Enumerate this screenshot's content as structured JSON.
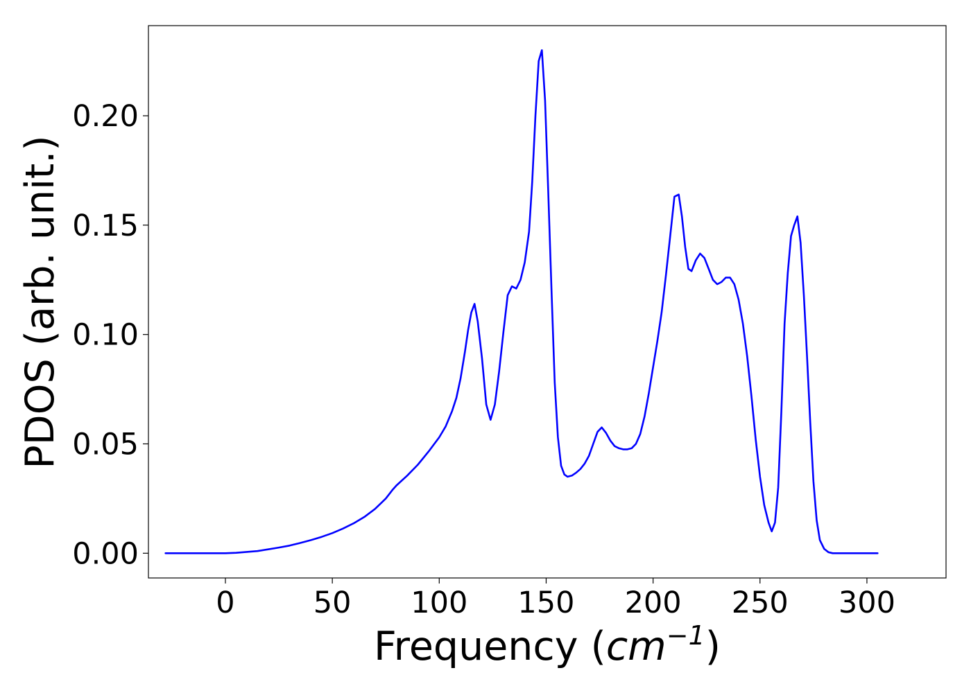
{
  "chart_data": {
    "type": "line",
    "title": "",
    "xlabel": "Frequency (",
    "xlabel_math": "cm",
    "xlabel_sup": "−1",
    "xlabel_end": ")",
    "ylabel": "PDOS (arb. unit.)",
    "xlim": [
      -36,
      337
    ],
    "ylim": [
      -0.0113,
      0.2412
    ],
    "xticks": [
      0,
      50,
      100,
      150,
      200,
      250,
      300
    ],
    "xtick_labels": [
      "0",
      "50",
      "100",
      "150",
      "200",
      "250",
      "300"
    ],
    "yticks": [
      0.0,
      0.05,
      0.1,
      0.15,
      0.2
    ],
    "ytick_labels": [
      "0.00",
      "0.05",
      "0.10",
      "0.15",
      "0.20"
    ],
    "grid": false,
    "series": [
      {
        "color": "#0000ff",
        "x": [
          -28,
          -20,
          -10,
          0,
          5,
          10,
          15,
          20,
          25,
          30,
          35,
          40,
          45,
          50,
          55,
          60,
          65,
          70,
          75,
          78,
          80,
          85,
          90,
          95,
          100,
          103,
          106,
          108,
          110,
          112,
          113.5,
          115,
          116.5,
          118,
          120,
          122,
          124,
          126,
          128,
          130,
          132,
          134,
          136,
          138,
          140,
          142,
          143.5,
          145,
          146.5,
          148,
          149.5,
          151,
          152.5,
          154,
          155.5,
          157,
          158.5,
          160,
          162,
          164,
          166,
          168,
          170,
          172,
          174,
          176,
          178,
          180,
          182,
          184,
          186,
          188,
          190,
          192,
          194,
          196,
          198,
          200,
          202,
          204,
          206,
          208,
          210,
          212,
          213.5,
          215,
          216.5,
          218,
          220,
          222,
          224,
          226,
          228,
          230,
          232,
          234,
          236,
          238,
          240,
          242,
          244,
          246,
          248,
          250,
          252,
          254,
          255.5,
          257,
          258.5,
          260,
          261.5,
          263,
          264.5,
          266,
          267.5,
          269,
          270.5,
          272,
          273.5,
          275,
          276.5,
          278,
          280,
          282,
          284,
          290,
          305
        ],
        "y": [
          0.0,
          0.0,
          0.0,
          0.0,
          0.0002,
          0.0006,
          0.001,
          0.0018,
          0.0026,
          0.0035,
          0.0047,
          0.006,
          0.0075,
          0.0092,
          0.0113,
          0.0137,
          0.0166,
          0.0203,
          0.025,
          0.0288,
          0.031,
          0.0355,
          0.0405,
          0.0465,
          0.053,
          0.058,
          0.065,
          0.071,
          0.08,
          0.092,
          0.102,
          0.11,
          0.114,
          0.106,
          0.089,
          0.068,
          0.061,
          0.068,
          0.083,
          0.101,
          0.118,
          0.122,
          0.121,
          0.125,
          0.133,
          0.147,
          0.17,
          0.2,
          0.225,
          0.23,
          0.207,
          0.165,
          0.12,
          0.078,
          0.053,
          0.04,
          0.036,
          0.035,
          0.0355,
          0.0368,
          0.0385,
          0.041,
          0.0445,
          0.05,
          0.0555,
          0.0575,
          0.055,
          0.0515,
          0.049,
          0.048,
          0.0475,
          0.0475,
          0.048,
          0.05,
          0.0545,
          0.0625,
          0.073,
          0.085,
          0.097,
          0.11,
          0.127,
          0.145,
          0.163,
          0.164,
          0.154,
          0.14,
          0.13,
          0.129,
          0.134,
          0.137,
          0.135,
          0.13,
          0.125,
          0.123,
          0.124,
          0.126,
          0.126,
          0.123,
          0.116,
          0.105,
          0.09,
          0.072,
          0.052,
          0.035,
          0.022,
          0.014,
          0.01,
          0.014,
          0.03,
          0.065,
          0.105,
          0.128,
          0.145,
          0.15,
          0.154,
          0.142,
          0.118,
          0.09,
          0.06,
          0.033,
          0.015,
          0.006,
          0.002,
          0.0005,
          0.0,
          0.0,
          0.0
        ]
      }
    ]
  }
}
